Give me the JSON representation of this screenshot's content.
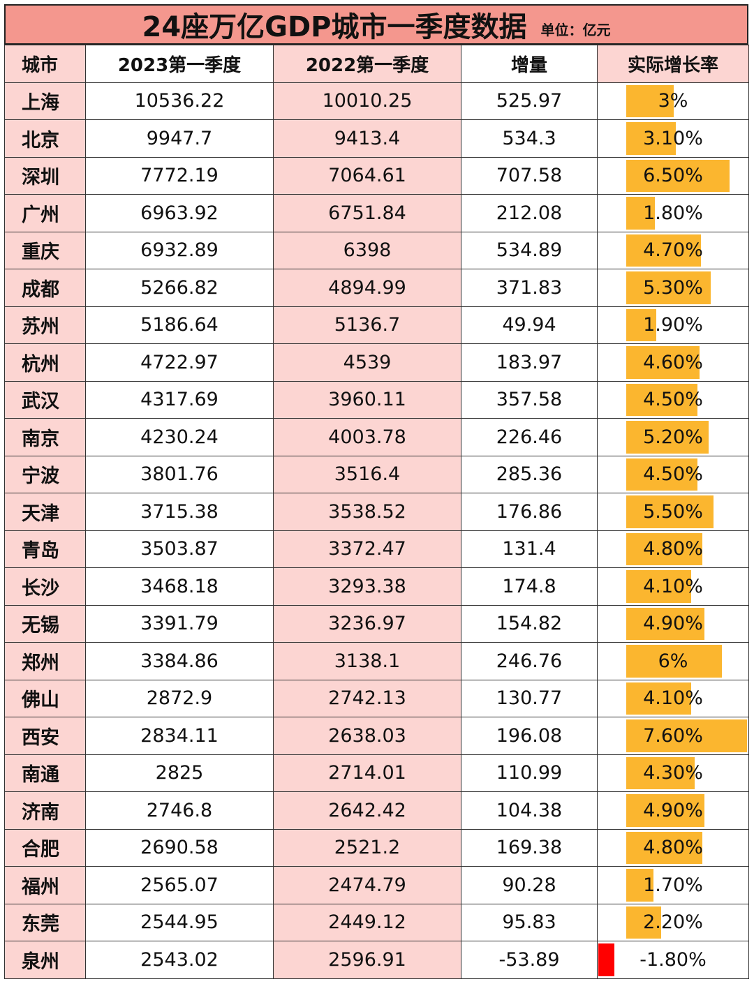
{
  "title": "24座万亿GDP城市一季度数据",
  "unit": "单位：亿元",
  "headers": [
    "城市",
    "2023第一季度",
    "2022第一季度",
    "增量",
    "实际增长率"
  ],
  "colors": {
    "title_bg": "#f4978e",
    "pink_cell": "#fcd5d2",
    "positive_bar": "#fbb62f",
    "negative_bar": "#ff0000"
  },
  "rows": [
    {
      "city": "上海",
      "y2023": "10536.22",
      "y2022": "10010.25",
      "increase": "525.97",
      "rate": "3%",
      "rate_value": 3.0
    },
    {
      "city": "北京",
      "y2023": "9947.7",
      "y2022": "9413.4",
      "increase": "534.3",
      "rate": "3.10%",
      "rate_value": 3.1
    },
    {
      "city": "深圳",
      "y2023": "7772.19",
      "y2022": "7064.61",
      "increase": "707.58",
      "rate": "6.50%",
      "rate_value": 6.5
    },
    {
      "city": "广州",
      "y2023": "6963.92",
      "y2022": "6751.84",
      "increase": "212.08",
      "rate": "1.80%",
      "rate_value": 1.8
    },
    {
      "city": "重庆",
      "y2023": "6932.89",
      "y2022": "6398",
      "increase": "534.89",
      "rate": "4.70%",
      "rate_value": 4.7
    },
    {
      "city": "成都",
      "y2023": "5266.82",
      "y2022": "4894.99",
      "increase": "371.83",
      "rate": "5.30%",
      "rate_value": 5.3
    },
    {
      "city": "苏州",
      "y2023": "5186.64",
      "y2022": "5136.7",
      "increase": "49.94",
      "rate": "1.90%",
      "rate_value": 1.9
    },
    {
      "city": "杭州",
      "y2023": "4722.97",
      "y2022": "4539",
      "increase": "183.97",
      "rate": "4.60%",
      "rate_value": 4.6
    },
    {
      "city": "武汉",
      "y2023": "4317.69",
      "y2022": "3960.11",
      "increase": "357.58",
      "rate": "4.50%",
      "rate_value": 4.5
    },
    {
      "city": "南京",
      "y2023": "4230.24",
      "y2022": "4003.78",
      "increase": "226.46",
      "rate": "5.20%",
      "rate_value": 5.2
    },
    {
      "city": "宁波",
      "y2023": "3801.76",
      "y2022": "3516.4",
      "increase": "285.36",
      "rate": "4.50%",
      "rate_value": 4.5
    },
    {
      "city": "天津",
      "y2023": "3715.38",
      "y2022": "3538.52",
      "increase": "176.86",
      "rate": "5.50%",
      "rate_value": 5.5
    },
    {
      "city": "青岛",
      "y2023": "3503.87",
      "y2022": "3372.47",
      "increase": "131.4",
      "rate": "4.80%",
      "rate_value": 4.8
    },
    {
      "city": "长沙",
      "y2023": "3468.18",
      "y2022": "3293.38",
      "increase": "174.8",
      "rate": "4.10%",
      "rate_value": 4.1
    },
    {
      "city": "无锡",
      "y2023": "3391.79",
      "y2022": "3236.97",
      "increase": "154.82",
      "rate": "4.90%",
      "rate_value": 4.9
    },
    {
      "city": "郑州",
      "y2023": "3384.86",
      "y2022": "3138.1",
      "increase": "246.76",
      "rate": "6%",
      "rate_value": 6.0
    },
    {
      "city": "佛山",
      "y2023": "2872.9",
      "y2022": "2742.13",
      "increase": "130.77",
      "rate": "4.10%",
      "rate_value": 4.1
    },
    {
      "city": "西安",
      "y2023": "2834.11",
      "y2022": "2638.03",
      "increase": "196.08",
      "rate": "7.60%",
      "rate_value": 7.6
    },
    {
      "city": "南通",
      "y2023": "2825",
      "y2022": "2714.01",
      "increase": "110.99",
      "rate": "4.30%",
      "rate_value": 4.3
    },
    {
      "city": "济南",
      "y2023": "2746.8",
      "y2022": "2642.42",
      "increase": "104.38",
      "rate": "4.90%",
      "rate_value": 4.9
    },
    {
      "city": "合肥",
      "y2023": "2690.58",
      "y2022": "2521.2",
      "increase": "169.38",
      "rate": "4.80%",
      "rate_value": 4.8
    },
    {
      "city": "福州",
      "y2023": "2565.07",
      "y2022": "2474.79",
      "increase": "90.28",
      "rate": "1.70%",
      "rate_value": 1.7
    },
    {
      "city": "东莞",
      "y2023": "2544.95",
      "y2022": "2449.12",
      "increase": "95.83",
      "rate": "2.20%",
      "rate_value": 2.2
    },
    {
      "city": "泉州",
      "y2023": "2543.02",
      "y2022": "2596.91",
      "increase": "-53.89",
      "rate": "-1.80%",
      "rate_value": -1.8
    }
  ]
}
